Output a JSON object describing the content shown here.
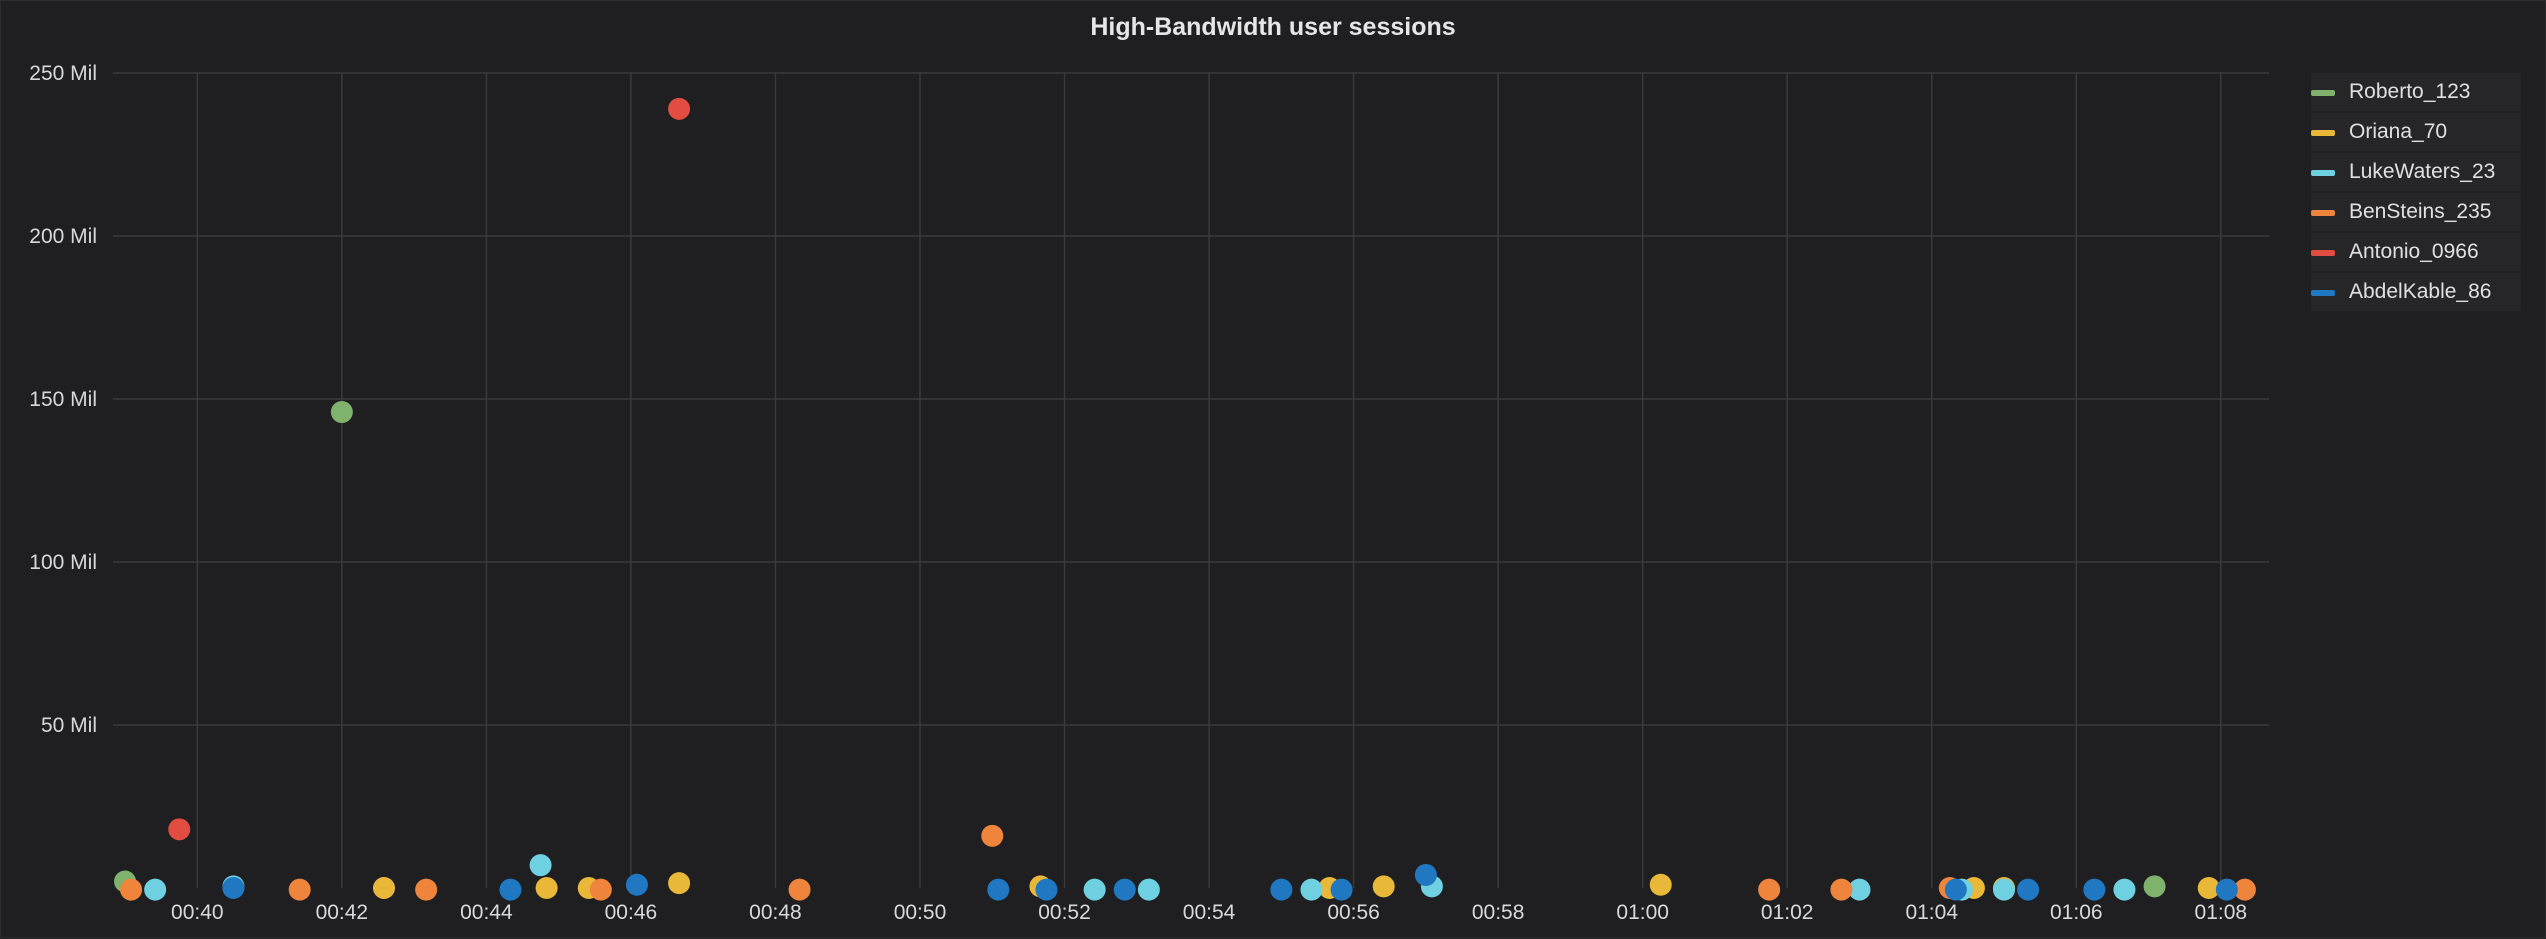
{
  "panel": {
    "title": "High-Bandwidth user sessions"
  },
  "legend": [
    {
      "name": "Roberto_123",
      "color": "#7eb26d"
    },
    {
      "name": "Oriana_70",
      "color": "#eab839"
    },
    {
      "name": "LukeWaters_23",
      "color": "#6ed0e0"
    },
    {
      "name": "BenSteins_235",
      "color": "#ef843c"
    },
    {
      "name": "Antonio_0966",
      "color": "#e24d42"
    },
    {
      "name": "AbdelKable_86",
      "color": "#1f78c1"
    }
  ],
  "chart_data": {
    "type": "scatter",
    "title": "High-Bandwidth user sessions",
    "xlabel": "",
    "ylabel": "",
    "x_unit": "time (HH:MM)",
    "x_range": [
      "00:38:50",
      "01:08:40"
    ],
    "ylim": [
      0,
      250
    ],
    "y_unit": "Mil",
    "x_tick_labels": [
      "00:40",
      "00:42",
      "00:44",
      "00:46",
      "00:48",
      "00:50",
      "00:52",
      "00:54",
      "00:56",
      "00:58",
      "01:00",
      "01:02",
      "01:04",
      "01:06",
      "01:08"
    ],
    "y_tick_labels": [
      "250 Mil",
      "200 Mil",
      "150 Mil",
      "100 Mil",
      "50 Mil"
    ],
    "y_tick_values": [
      250,
      200,
      150,
      100,
      50
    ],
    "grid": true,
    "legend_position": "right",
    "series": [
      {
        "name": "Roberto_123",
        "color": "#7eb26d",
        "points": [
          [
            "00:39:00",
            2
          ],
          [
            "00:42:00",
            146
          ],
          [
            "01:07:05",
            0.5
          ]
        ]
      },
      {
        "name": "Oriana_70",
        "color": "#eab839",
        "points": [
          [
            "00:42:35",
            0
          ],
          [
            "00:44:50",
            0
          ],
          [
            "00:45:25",
            0
          ],
          [
            "00:46:40",
            1.5
          ],
          [
            "00:51:40",
            0.5
          ],
          [
            "00:55:40",
            0
          ],
          [
            "00:56:25",
            0.5
          ],
          [
            "01:00:15",
            1
          ],
          [
            "01:04:35",
            0
          ],
          [
            "01:05:00",
            0
          ],
          [
            "01:07:50",
            0
          ]
        ]
      },
      {
        "name": "LukeWaters_23",
        "color": "#6ed0e0",
        "points": [
          [
            "00:39:25",
            -0.5
          ],
          [
            "00:40:30",
            0.5
          ],
          [
            "00:44:45",
            7
          ],
          [
            "00:52:25",
            -0.5
          ],
          [
            "00:53:10",
            -0.5
          ],
          [
            "00:55:25",
            -0.5
          ],
          [
            "00:57:05",
            0.5
          ],
          [
            "01:03:00",
            -0.5
          ],
          [
            "01:04:25",
            -0.5
          ],
          [
            "01:05:00",
            -0.5
          ],
          [
            "01:06:40",
            -0.5
          ]
        ]
      },
      {
        "name": "BenSteins_235",
        "color": "#ef843c",
        "points": [
          [
            "00:39:05",
            -0.5
          ],
          [
            "00:41:25",
            -0.5
          ],
          [
            "00:43:10",
            -0.5
          ],
          [
            "00:45:35",
            -0.5
          ],
          [
            "00:48:20",
            -0.5
          ],
          [
            "00:51:00",
            16
          ],
          [
            "01:01:45",
            -0.5
          ],
          [
            "01:02:45",
            -0.5
          ],
          [
            "01:04:15",
            0
          ],
          [
            "01:08:20",
            -0.5
          ]
        ]
      },
      {
        "name": "Antonio_0966",
        "color": "#e24d42",
        "points": [
          [
            "00:39:45",
            18
          ],
          [
            "00:46:40",
            239
          ]
        ]
      },
      {
        "name": "AbdelKable_86",
        "color": "#1f78c1",
        "points": [
          [
            "00:40:30",
            0
          ],
          [
            "00:44:20",
            -0.5
          ],
          [
            "00:46:05",
            1
          ],
          [
            "00:51:05",
            -0.5
          ],
          [
            "00:51:45",
            -0.5
          ],
          [
            "00:52:50",
            -0.5
          ],
          [
            "00:55:00",
            -0.5
          ],
          [
            "00:55:50",
            -0.5
          ],
          [
            "00:57:00",
            4
          ],
          [
            "01:04:20",
            -0.5
          ],
          [
            "01:05:20",
            -0.5
          ],
          [
            "01:06:15",
            -0.5
          ],
          [
            "01:08:05",
            -0.5
          ]
        ]
      }
    ]
  }
}
